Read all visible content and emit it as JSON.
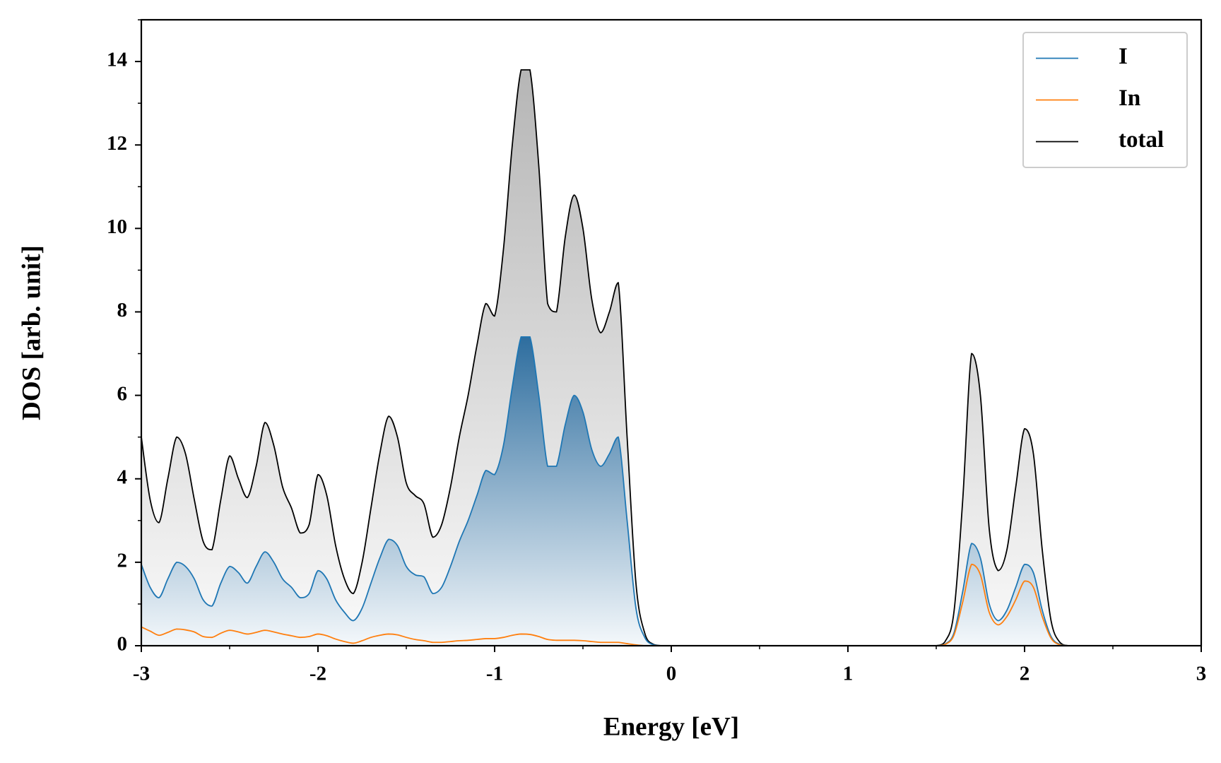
{
  "chart_data": {
    "type": "line",
    "x_label": "Energy [eV]",
    "y_label": "DOS [arb. unit]",
    "x": [
      -3,
      -2.95,
      -2.9,
      -2.85,
      -2.8,
      -2.75,
      -2.7,
      -2.65,
      -2.6,
      -2.55,
      -2.5,
      -2.45,
      -2.4,
      -2.35,
      -2.3,
      -2.25,
      -2.2,
      -2.15,
      -2.1,
      -2.05,
      -2,
      -1.95,
      -1.9,
      -1.85,
      -1.8,
      -1.75,
      -1.7,
      -1.65,
      -1.6,
      -1.55,
      -1.5,
      -1.45,
      -1.4,
      -1.35,
      -1.3,
      -1.25,
      -1.2,
      -1.15,
      -1.1,
      -1.05,
      -1,
      -0.95,
      -0.9,
      -0.85,
      -0.8,
      -0.75,
      -0.7,
      -0.65,
      -0.6,
      -0.55,
      -0.5,
      -0.45,
      -0.4,
      -0.35,
      -0.3,
      -0.25,
      -0.2,
      -0.15,
      -0.1,
      -0.05,
      0,
      0.05,
      0.1,
      0.15,
      0.2,
      0.25,
      0.3,
      0.35,
      0.4,
      0.45,
      0.5,
      0.55,
      0.6,
      0.65,
      0.7,
      0.75,
      0.8,
      0.85,
      0.9,
      0.95,
      1,
      1.05,
      1.1,
      1.15,
      1.2,
      1.25,
      1.3,
      1.35,
      1.4,
      1.45,
      1.5,
      1.55,
      1.6,
      1.65,
      1.7,
      1.75,
      1.8,
      1.85,
      1.9,
      1.95,
      2,
      2.05,
      2.1,
      2.15,
      2.2,
      2.25,
      2.3,
      2.35,
      2.4,
      2.45,
      2.5,
      2.55,
      2.6,
      2.65,
      2.7,
      2.75,
      2.8,
      2.85,
      2.9,
      2.95,
      3
    ],
    "series": [
      {
        "name": "I",
        "color": "#1f77b4",
        "fill": true,
        "values": [
          1.95,
          1.4,
          1.15,
          1.6,
          2.0,
          1.9,
          1.6,
          1.1,
          0.95,
          1.5,
          1.9,
          1.75,
          1.5,
          1.9,
          2.25,
          2.0,
          1.6,
          1.4,
          1.15,
          1.25,
          1.8,
          1.6,
          1.1,
          0.8,
          0.6,
          0.9,
          1.5,
          2.1,
          2.55,
          2.4,
          1.9,
          1.7,
          1.65,
          1.25,
          1.4,
          1.9,
          2.5,
          3.0,
          3.6,
          4.2,
          4.1,
          4.8,
          6.2,
          7.4,
          7.4,
          6.0,
          4.3,
          4.3,
          5.3,
          6.0,
          5.6,
          4.7,
          4.3,
          4.6,
          5.0,
          3.0,
          0.9,
          0.2,
          0.02,
          0,
          0,
          0,
          0,
          0,
          0,
          0,
          0,
          0,
          0,
          0,
          0,
          0,
          0,
          0,
          0,
          0,
          0,
          0,
          0,
          0,
          0,
          0,
          0,
          0,
          0,
          0,
          0,
          0,
          0,
          0,
          0,
          0.04,
          0.3,
          1.3,
          2.45,
          2.1,
          1.0,
          0.6,
          0.85,
          1.4,
          1.95,
          1.75,
          0.85,
          0.22,
          0.03,
          0,
          0,
          0,
          0,
          0,
          0,
          0,
          0,
          0,
          0,
          0,
          0,
          0,
          0,
          0,
          0
        ]
      },
      {
        "name": "In",
        "color": "#ff7f0e",
        "fill": false,
        "values": [
          0.45,
          0.35,
          0.25,
          0.32,
          0.4,
          0.38,
          0.33,
          0.22,
          0.2,
          0.3,
          0.37,
          0.33,
          0.28,
          0.32,
          0.37,
          0.33,
          0.28,
          0.24,
          0.2,
          0.22,
          0.28,
          0.24,
          0.16,
          0.1,
          0.06,
          0.12,
          0.2,
          0.25,
          0.28,
          0.26,
          0.2,
          0.15,
          0.12,
          0.08,
          0.08,
          0.1,
          0.12,
          0.13,
          0.15,
          0.17,
          0.17,
          0.2,
          0.25,
          0.28,
          0.27,
          0.22,
          0.15,
          0.13,
          0.13,
          0.13,
          0.12,
          0.1,
          0.08,
          0.08,
          0.08,
          0.05,
          0.02,
          0,
          0,
          0,
          0,
          0,
          0,
          0,
          0,
          0,
          0,
          0,
          0,
          0,
          0,
          0,
          0,
          0,
          0,
          0,
          0,
          0,
          0,
          0,
          0,
          0,
          0,
          0,
          0,
          0,
          0,
          0,
          0,
          0,
          0,
          0.03,
          0.25,
          1.05,
          1.95,
          1.7,
          0.8,
          0.5,
          0.7,
          1.1,
          1.55,
          1.4,
          0.7,
          0.18,
          0.02,
          0,
          0,
          0,
          0,
          0,
          0,
          0,
          0,
          0,
          0,
          0,
          0,
          0,
          0,
          0,
          0
        ]
      },
      {
        "name": "total",
        "color": "#000000",
        "fill": true,
        "values": [
          5.0,
          3.5,
          2.95,
          4.0,
          5.0,
          4.6,
          3.5,
          2.5,
          2.3,
          3.5,
          4.55,
          4.0,
          3.55,
          4.3,
          5.35,
          4.8,
          3.8,
          3.3,
          2.7,
          2.9,
          4.1,
          3.6,
          2.4,
          1.6,
          1.25,
          2.0,
          3.3,
          4.6,
          5.5,
          5.0,
          3.9,
          3.6,
          3.4,
          2.6,
          2.9,
          3.8,
          5.0,
          6.0,
          7.2,
          8.2,
          7.9,
          9.5,
          12.0,
          13.8,
          13.8,
          11.5,
          8.2,
          8.0,
          9.8,
          10.8,
          10.0,
          8.3,
          7.5,
          8.0,
          8.7,
          5.0,
          1.5,
          0.3,
          0.03,
          0,
          0,
          0,
          0,
          0,
          0,
          0,
          0,
          0,
          0,
          0,
          0,
          0,
          0,
          0,
          0,
          0,
          0,
          0,
          0,
          0,
          0,
          0,
          0,
          0,
          0,
          0,
          0,
          0,
          0,
          0,
          0,
          0.1,
          0.8,
          3.5,
          7.0,
          6.0,
          2.8,
          1.8,
          2.3,
          3.8,
          5.2,
          4.6,
          2.3,
          0.6,
          0.08,
          0,
          0,
          0,
          0,
          0,
          0,
          0,
          0,
          0,
          0,
          0,
          0,
          0,
          0,
          0,
          0
        ]
      }
    ],
    "xlim": [
      -3,
      3
    ],
    "ylim": [
      0,
      15
    ],
    "xticks": [
      -3,
      -2,
      -1,
      0,
      1,
      2,
      3
    ],
    "yticks": [
      0,
      2,
      4,
      6,
      8,
      10,
      12,
      14
    ],
    "xminorticks": [
      -2.5,
      -1.5,
      -0.5,
      0.5,
      1.5,
      2.5
    ],
    "yminorticks": [
      1,
      3,
      5,
      7,
      9,
      11,
      13,
      15
    ],
    "legend": "upper right",
    "grid": false
  }
}
